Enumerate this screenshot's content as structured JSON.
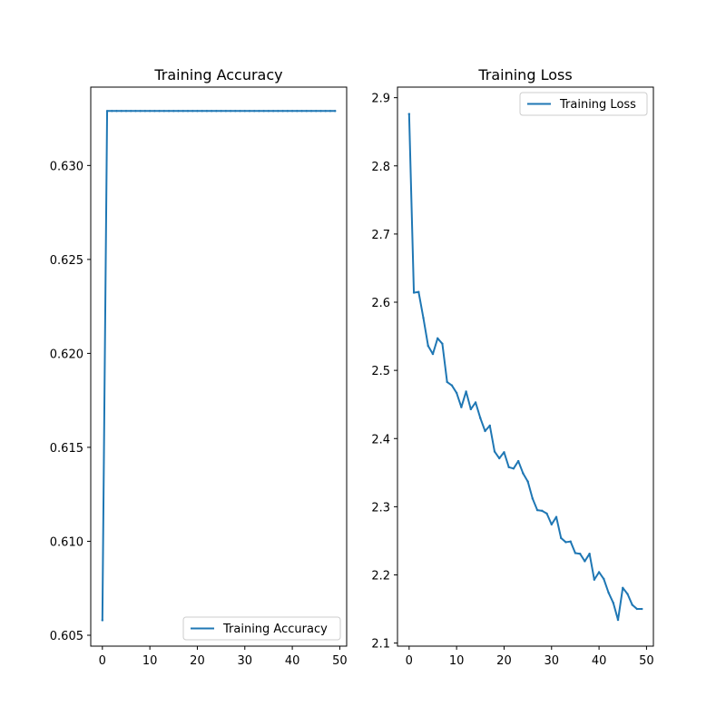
{
  "chart_data": [
    {
      "type": "line",
      "title": "Training Accuracy",
      "xlabel": "",
      "ylabel": "",
      "xlim": [
        -2.45,
        51.45
      ],
      "ylim": [
        0.60442,
        0.63417
      ],
      "x_ticks": [
        0,
        10,
        20,
        30,
        40,
        50
      ],
      "y_ticks": [
        0.605,
        0.61,
        0.615,
        0.62,
        0.625,
        0.63
      ],
      "y_tick_labels": [
        "0.605",
        "0.610",
        "0.615",
        "0.620",
        "0.625",
        "0.630"
      ],
      "grid": false,
      "legend": {
        "placement": "lower-right",
        "entries": [
          "Training Accuracy"
        ]
      },
      "series": [
        {
          "name": "Training Accuracy",
          "color": "#1f77b4",
          "x": [
            0,
            1,
            2,
            3,
            4,
            5,
            6,
            7,
            8,
            9,
            10,
            11,
            12,
            13,
            14,
            15,
            16,
            17,
            18,
            19,
            20,
            21,
            22,
            23,
            24,
            25,
            26,
            27,
            28,
            29,
            30,
            31,
            32,
            33,
            34,
            35,
            36,
            37,
            38,
            39,
            40,
            41,
            42,
            43,
            44,
            45,
            46,
            47,
            48,
            49
          ],
          "values": [
            0.6058,
            0.6329,
            0.6329,
            0.6329,
            0.6329,
            0.6329,
            0.6329,
            0.6329,
            0.6329,
            0.6329,
            0.6329,
            0.6329,
            0.6329,
            0.6329,
            0.6329,
            0.6329,
            0.6329,
            0.6329,
            0.6329,
            0.6329,
            0.6329,
            0.6329,
            0.6329,
            0.6329,
            0.6329,
            0.6329,
            0.6329,
            0.6329,
            0.6329,
            0.6329,
            0.6329,
            0.6329,
            0.6329,
            0.6329,
            0.6329,
            0.6329,
            0.6329,
            0.6329,
            0.6329,
            0.6329,
            0.6329,
            0.6329,
            0.6329,
            0.6329,
            0.6329,
            0.6329,
            0.6329,
            0.6329,
            0.6329,
            0.6329
          ]
        }
      ]
    },
    {
      "type": "line",
      "title": "Training Loss",
      "xlabel": "",
      "ylabel": "",
      "xlim": [
        -2.45,
        51.45
      ],
      "ylim": [
        2.0955,
        2.9155
      ],
      "x_ticks": [
        0,
        10,
        20,
        30,
        40,
        50
      ],
      "y_ticks": [
        2.1,
        2.2,
        2.3,
        2.4,
        2.5,
        2.6,
        2.7,
        2.8,
        2.9
      ],
      "y_tick_labels": [
        "2.1",
        "2.2",
        "2.3",
        "2.4",
        "2.5",
        "2.6",
        "2.7",
        "2.8",
        "2.9"
      ],
      "grid": false,
      "legend": {
        "placement": "upper-right",
        "entries": [
          "Training Loss"
        ]
      },
      "series": [
        {
          "name": "Training Loss",
          "color": "#1f77b4",
          "x": [
            0,
            1,
            2,
            3,
            4,
            5,
            6,
            7,
            8,
            9,
            10,
            11,
            12,
            13,
            14,
            15,
            16,
            17,
            18,
            19,
            20,
            21,
            22,
            23,
            24,
            25,
            26,
            27,
            28,
            29,
            30,
            31,
            32,
            33,
            34,
            35,
            36,
            37,
            38,
            39,
            40,
            41,
            42,
            43,
            44,
            45,
            46,
            47,
            48,
            49
          ],
          "values": [
            2.876,
            2.614,
            2.615,
            2.577,
            2.536,
            2.524,
            2.547,
            2.539,
            2.483,
            2.478,
            2.467,
            2.446,
            2.469,
            2.443,
            2.453,
            2.43,
            2.411,
            2.419,
            2.381,
            2.371,
            2.38,
            2.358,
            2.356,
            2.367,
            2.349,
            2.337,
            2.312,
            2.295,
            2.294,
            2.29,
            2.274,
            2.285,
            2.254,
            2.248,
            2.249,
            2.232,
            2.231,
            2.22,
            2.231,
            2.193,
            2.204,
            2.194,
            2.174,
            2.159,
            2.134,
            2.181,
            2.172,
            2.156,
            2.15,
            2.15
          ]
        }
      ]
    }
  ]
}
